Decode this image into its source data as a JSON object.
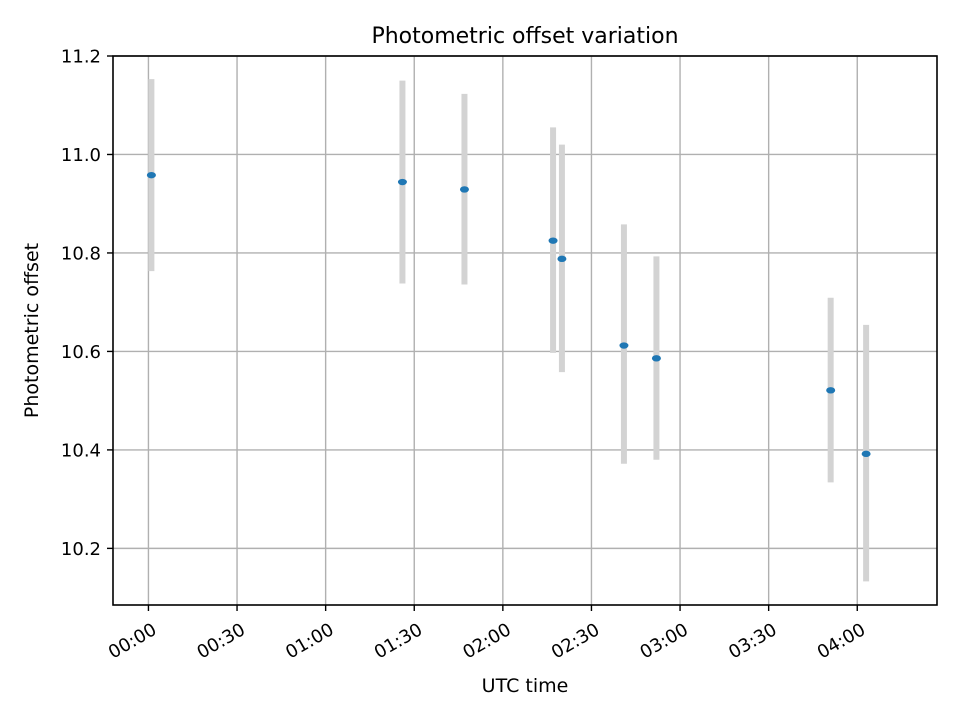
{
  "chart_data": {
    "type": "scatter",
    "title": "Photometric offset variation",
    "xlabel": "UTC time",
    "ylabel": "Photometric offset",
    "xlim": [
      "23:48",
      "04:27"
    ],
    "ylim": [
      10.085,
      11.2
    ],
    "x_ticks": [
      "00:00",
      "00:30",
      "01:00",
      "01:30",
      "02:00",
      "02:30",
      "03:00",
      "03:30",
      "04:00"
    ],
    "y_ticks": [
      "10.2",
      "10.4",
      "10.6",
      "10.8",
      "11.0",
      "11.2"
    ],
    "grid": true,
    "points": [
      {
        "x": "00:01",
        "y": 10.958,
        "err_low": 10.763,
        "err_high": 11.153
      },
      {
        "x": "01:26",
        "y": 10.944,
        "err_low": 10.738,
        "err_high": 11.15
      },
      {
        "x": "01:47",
        "y": 10.929,
        "err_low": 10.736,
        "err_high": 11.123
      },
      {
        "x": "02:17",
        "y": 10.825,
        "err_low": 10.597,
        "err_high": 11.055
      },
      {
        "x": "02:20",
        "y": 10.788,
        "err_low": 10.558,
        "err_high": 11.02
      },
      {
        "x": "02:41",
        "y": 10.612,
        "err_low": 10.372,
        "err_high": 10.858
      },
      {
        "x": "02:52",
        "y": 10.586,
        "err_low": 10.38,
        "err_high": 10.793
      },
      {
        "x": "03:51",
        "y": 10.521,
        "err_low": 10.334,
        "err_high": 10.709
      },
      {
        "x": "04:03",
        "y": 10.392,
        "err_low": 10.133,
        "err_high": 10.654
      }
    ],
    "colors": {
      "marker": "#1f77b4",
      "errorbar": "#d3d3d3",
      "grid": "#b0b0b0",
      "axes": "#000000"
    }
  }
}
